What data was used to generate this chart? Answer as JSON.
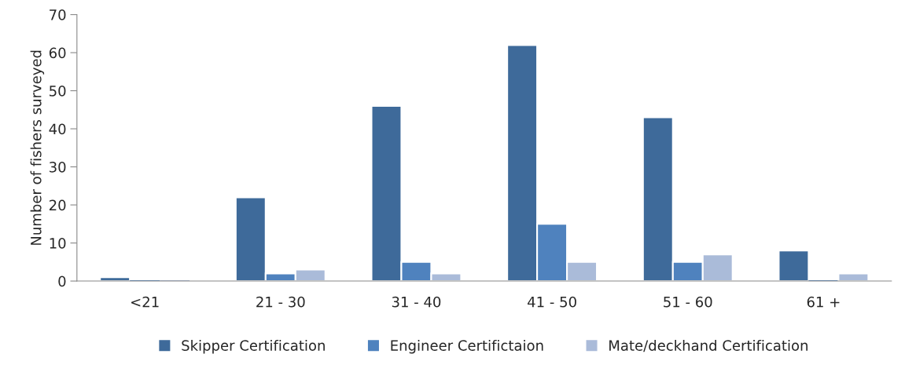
{
  "chart_data": {
    "type": "bar",
    "ylabel": "Number of fishers surveyed",
    "categories": [
      "<21",
      "21 - 30",
      "31 - 40",
      "41 - 50",
      "51 - 60",
      "61 +"
    ],
    "series": [
      {
        "name": "Skipper Certification",
        "color": "#3e6a9a",
        "values": [
          1,
          22,
          46,
          62,
          43,
          8
        ]
      },
      {
        "name": "Engineer Certifictaion",
        "color": "#4f82be",
        "values": [
          0,
          2,
          5,
          15,
          5,
          0
        ]
      },
      {
        "name": "Mate/deckhand Certification",
        "color": "#aabbd9",
        "values": [
          0,
          3,
          2,
          5,
          7,
          2
        ]
      }
    ],
    "ylim": [
      0,
      70
    ],
    "yticks": [
      0,
      10,
      20,
      30,
      40,
      50,
      60,
      70
    ],
    "grid": false,
    "legend": "bottom"
  }
}
